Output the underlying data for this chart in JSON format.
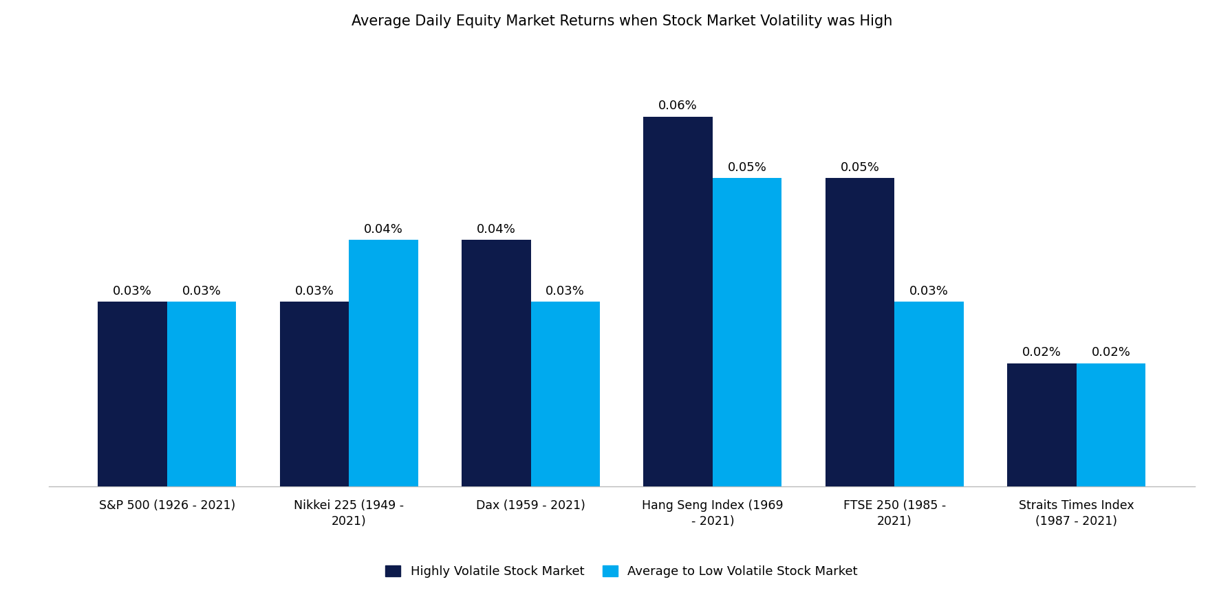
{
  "title": "Average Daily Equity Market Returns when Stock Market Volatility was High",
  "categories": [
    "S&P 500 (1926 - 2021)",
    "Nikkei 225 (1949 -\n2021)",
    "Dax (1959 - 2021)",
    "Hang Seng Index (1969\n- 2021)",
    "FTSE 250 (1985 -\n2021)",
    "Straits Times Index\n(1987 - 2021)"
  ],
  "highly_volatile": [
    0.03,
    0.03,
    0.04,
    0.06,
    0.05,
    0.02
  ],
  "avg_low_volatile": [
    0.03,
    0.04,
    0.03,
    0.05,
    0.03,
    0.02
  ],
  "highly_volatile_labels": [
    "0.03%",
    "0.03%",
    "0.04%",
    "0.06%",
    "0.05%",
    "0.02%"
  ],
  "avg_low_volatile_labels": [
    "0.03%",
    "0.04%",
    "0.03%",
    "0.05%",
    "0.03%",
    "0.02%"
  ],
  "color_highly_volatile": "#0d1b4b",
  "color_avg_low_volatile": "#00aaee",
  "legend_highly_volatile": "Highly Volatile Stock Market",
  "legend_avg_low_volatile": "Average to Low Volatile Stock Market",
  "title_fontsize": 15,
  "tick_fontsize": 12.5,
  "legend_fontsize": 13,
  "bar_value_fontsize": 13,
  "background_color": "#ffffff",
  "ylim": [
    0,
    0.072
  ],
  "bar_width": 0.38
}
